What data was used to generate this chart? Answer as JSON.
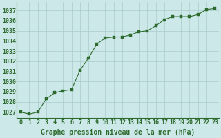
{
  "x": [
    0,
    1,
    2,
    3,
    4,
    5,
    6,
    7,
    8,
    9,
    10,
    11,
    12,
    13,
    14,
    15,
    16,
    17,
    18,
    19,
    20,
    21,
    22,
    23
  ],
  "y": [
    1027.0,
    1026.8,
    1027.0,
    1028.3,
    1028.9,
    1029.1,
    1029.2,
    1031.1,
    1032.3,
    1033.7,
    1034.3,
    1034.4,
    1034.4,
    1034.6,
    1034.9,
    1035.0,
    1035.5,
    1036.1,
    1036.4,
    1036.4,
    1036.4,
    1036.6,
    1037.1,
    1037.2
  ],
  "line_color": "#2d6a2d",
  "marker_color": "#2d6a2d",
  "bg_color": "#cce8e8",
  "grid_color": "#aacccc",
  "xlabel": "Graphe pression niveau de la mer (hPa)",
  "ylim_min": 1026.4,
  "ylim_max": 1037.85,
  "yticks": [
    1027,
    1028,
    1029,
    1030,
    1031,
    1032,
    1033,
    1034,
    1035,
    1036,
    1037
  ],
  "xticks": [
    0,
    1,
    2,
    3,
    4,
    5,
    6,
    7,
    8,
    9,
    10,
    11,
    12,
    13,
    14,
    15,
    16,
    17,
    18,
    19,
    20,
    21,
    22,
    23
  ],
  "label_color": "#2d6a2d",
  "tick_label_color": "#2d6a2d",
  "xlabel_fontsize": 7.0,
  "tick_fontsize": 6.0,
  "linewidth": 0.8,
  "markersize": 2.2
}
